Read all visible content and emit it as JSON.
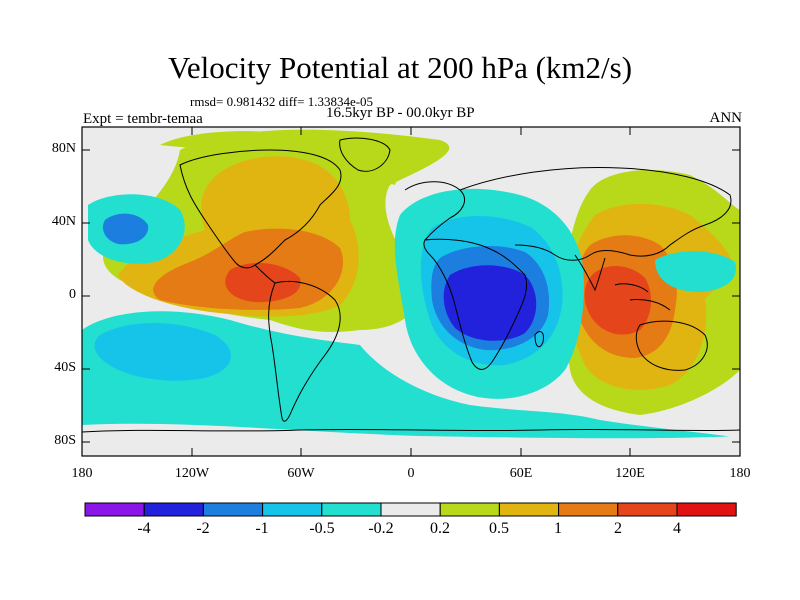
{
  "title": "Velocity Potential at 200 hPa (km2/s)",
  "stats": "rmsd= 0.981432 diff= 1.33834e-05",
  "experiment": "Expt = tembr-temaa",
  "period": "16.5kyr BP - 00.0kyr BP",
  "season": "ANN",
  "axes": {
    "lat_labels": [
      "80N",
      "40N",
      "0",
      "40S",
      "80S"
    ],
    "lon_labels": [
      "180",
      "120W",
      "60W",
      "0",
      "60E",
      "120E",
      "180"
    ]
  },
  "colorbar": {
    "labels": [
      "-4",
      "-2",
      "-1",
      "-0.5",
      "-0.2",
      "0.2",
      "0.5",
      "1",
      "2",
      "4"
    ],
    "colors": [
      "#8a17e8",
      "#2222dc",
      "#1c7fe0",
      "#16c4ea",
      "#22dfcf",
      "#ebebeb",
      "#b8d81a",
      "#e0b512",
      "#e47b15",
      "#e4451a",
      "#e01212"
    ]
  }
}
